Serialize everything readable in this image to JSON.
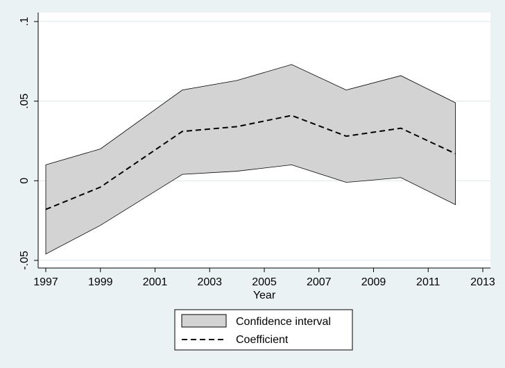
{
  "chart_data": {
    "type": "line",
    "title": "",
    "xlabel": "Year",
    "ylabel": "",
    "xlim": [
      1997,
      2013
    ],
    "ylim": [
      -0.05,
      0.1
    ],
    "x_ticks": [
      1997,
      1999,
      2001,
      2003,
      2005,
      2007,
      2009,
      2011,
      2013
    ],
    "x_tick_labels": [
      "1997",
      "1999",
      "2001",
      "2003",
      "2005",
      "2007",
      "2009",
      "2011",
      "2013"
    ],
    "y_ticks": [
      -0.05,
      0,
      0.05,
      0.1
    ],
    "y_tick_labels": [
      "-.05",
      "0",
      ".05",
      ".1"
    ],
    "grid": "horizontal",
    "legend_position": "bottom",
    "x": [
      1997,
      1999,
      2002,
      2004,
      2006,
      2008,
      2010,
      2012
    ],
    "series": [
      {
        "name": "Coefficient",
        "style": "dashed",
        "values": [
          -0.018,
          -0.004,
          0.031,
          0.034,
          0.041,
          0.028,
          0.033,
          0.017
        ]
      }
    ],
    "confidence_interval": {
      "name": "Confidence interval",
      "lower": [
        -0.046,
        -0.028,
        0.004,
        0.006,
        0.01,
        -0.001,
        0.002,
        -0.015
      ],
      "upper": [
        0.01,
        0.02,
        0.057,
        0.063,
        0.073,
        0.057,
        0.066,
        0.049
      ]
    },
    "colors": {
      "background": "#eaf2f3",
      "plot_area": "#ffffff",
      "band_fill": "#d3d3d3",
      "band_stroke": "#000000",
      "line": "#000000",
      "grid": "#dfe6e8"
    }
  }
}
